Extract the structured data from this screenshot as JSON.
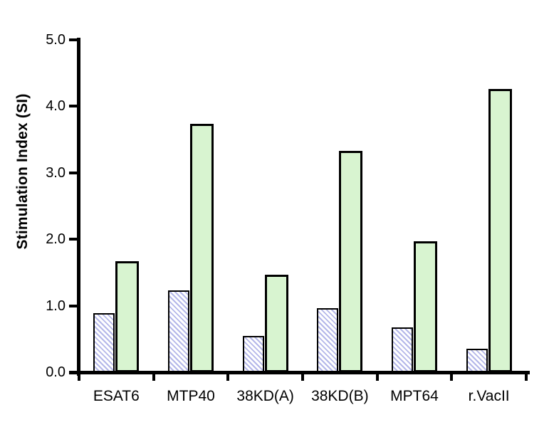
{
  "chart_data": {
    "type": "bar",
    "title": "",
    "xlabel": "",
    "ylabel": "Stimulation Index (SI)",
    "ylim": [
      0,
      5
    ],
    "ytick_step": 1.0,
    "ytick_labels": [
      "0.0",
      "1.0",
      "2.0",
      "3.0",
      "4.0",
      "5.0"
    ],
    "categories": [
      "ESAT6",
      "MTP40",
      "38KD(A)",
      "38KD(B)",
      "MPT64",
      "r.VacII"
    ],
    "series": [
      {
        "name": "hatched-bar-series",
        "style": "diagonal-hatch",
        "values": [
          0.89,
          1.23,
          0.55,
          0.96,
          0.67,
          0.35
        ],
        "fill": "#ffffff",
        "hatch_color": "#b4b7e9",
        "border_color": "#000000"
      },
      {
        "name": "green-bar-series",
        "style": "solid",
        "values": [
          1.67,
          3.74,
          1.47,
          3.33,
          1.97,
          4.26
        ],
        "fill": "#d8f4d0",
        "border_color": "#000000"
      }
    ],
    "legend": "none",
    "grid": false,
    "background_color": "#ffffff",
    "axis_color": "#000000"
  }
}
